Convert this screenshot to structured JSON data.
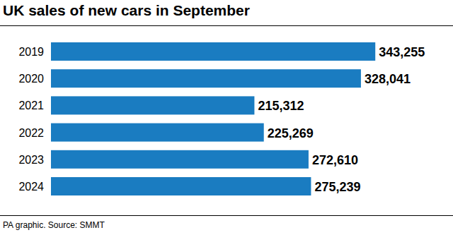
{
  "chart_data": {
    "type": "bar",
    "orientation": "horizontal",
    "title": "UK sales of new cars in September",
    "source": "PA graphic. Source: SMMT",
    "categories": [
      "2019",
      "2020",
      "2021",
      "2022",
      "2023",
      "2024"
    ],
    "values": [
      343255,
      328041,
      215312,
      225269,
      272610,
      275239
    ],
    "value_labels": [
      "343,255",
      "328,041",
      "215,312",
      "225,269",
      "272,610",
      "275,239"
    ],
    "color": "#1a7cc1",
    "xlim": [
      0,
      418000
    ],
    "data_labels": true,
    "tick_labels": "y",
    "grid": false
  }
}
